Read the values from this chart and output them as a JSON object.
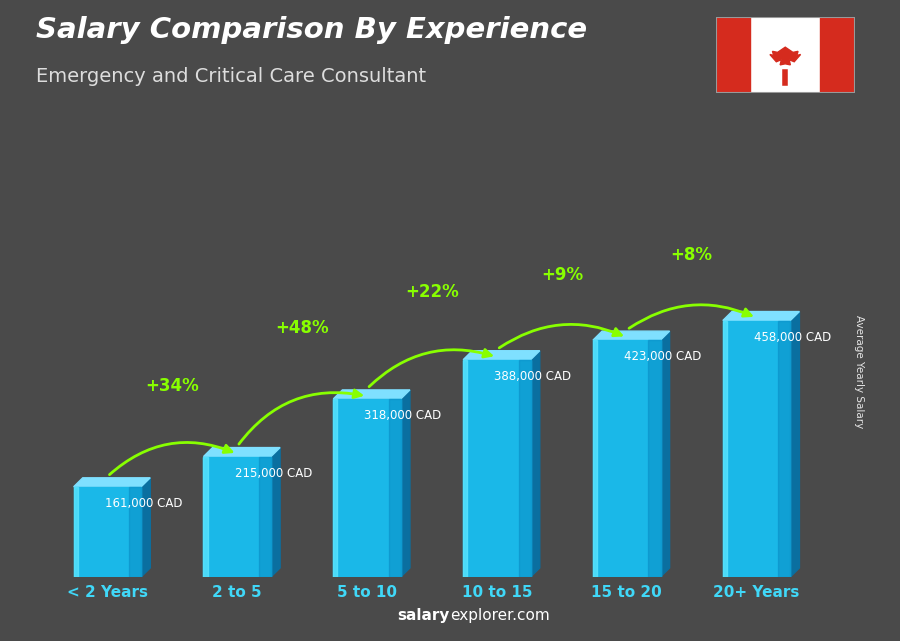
{
  "title1": "Salary Comparison By Experience",
  "title2": "Emergency and Critical Care Consultant",
  "categories": [
    "< 2 Years",
    "2 to 5",
    "5 to 10",
    "10 to 15",
    "15 to 20",
    "20+ Years"
  ],
  "values": [
    161000,
    215000,
    318000,
    388000,
    423000,
    458000
  ],
  "labels": [
    "161,000 CAD",
    "215,000 CAD",
    "318,000 CAD",
    "388,000 CAD",
    "423,000 CAD",
    "458,000 CAD"
  ],
  "pct_changes": [
    "+34%",
    "+48%",
    "+22%",
    "+9%",
    "+8%"
  ],
  "bar_color_front": "#1ab8e8",
  "bar_color_right": "#0a6fa0",
  "bar_color_top": "#7fe0ff",
  "bar_color_dark": "#0a5a80",
  "bg_color": "#4a4a4a",
  "pct_color": "#88ff00",
  "xlabel_color": "#40d8f8",
  "ylabel_text": "Average Yearly Salary",
  "footer_salary_color": "#ffffff",
  "footer_explorer_color": "#ffffff",
  "figsize": [
    9.0,
    6.41
  ],
  "dpi": 100
}
